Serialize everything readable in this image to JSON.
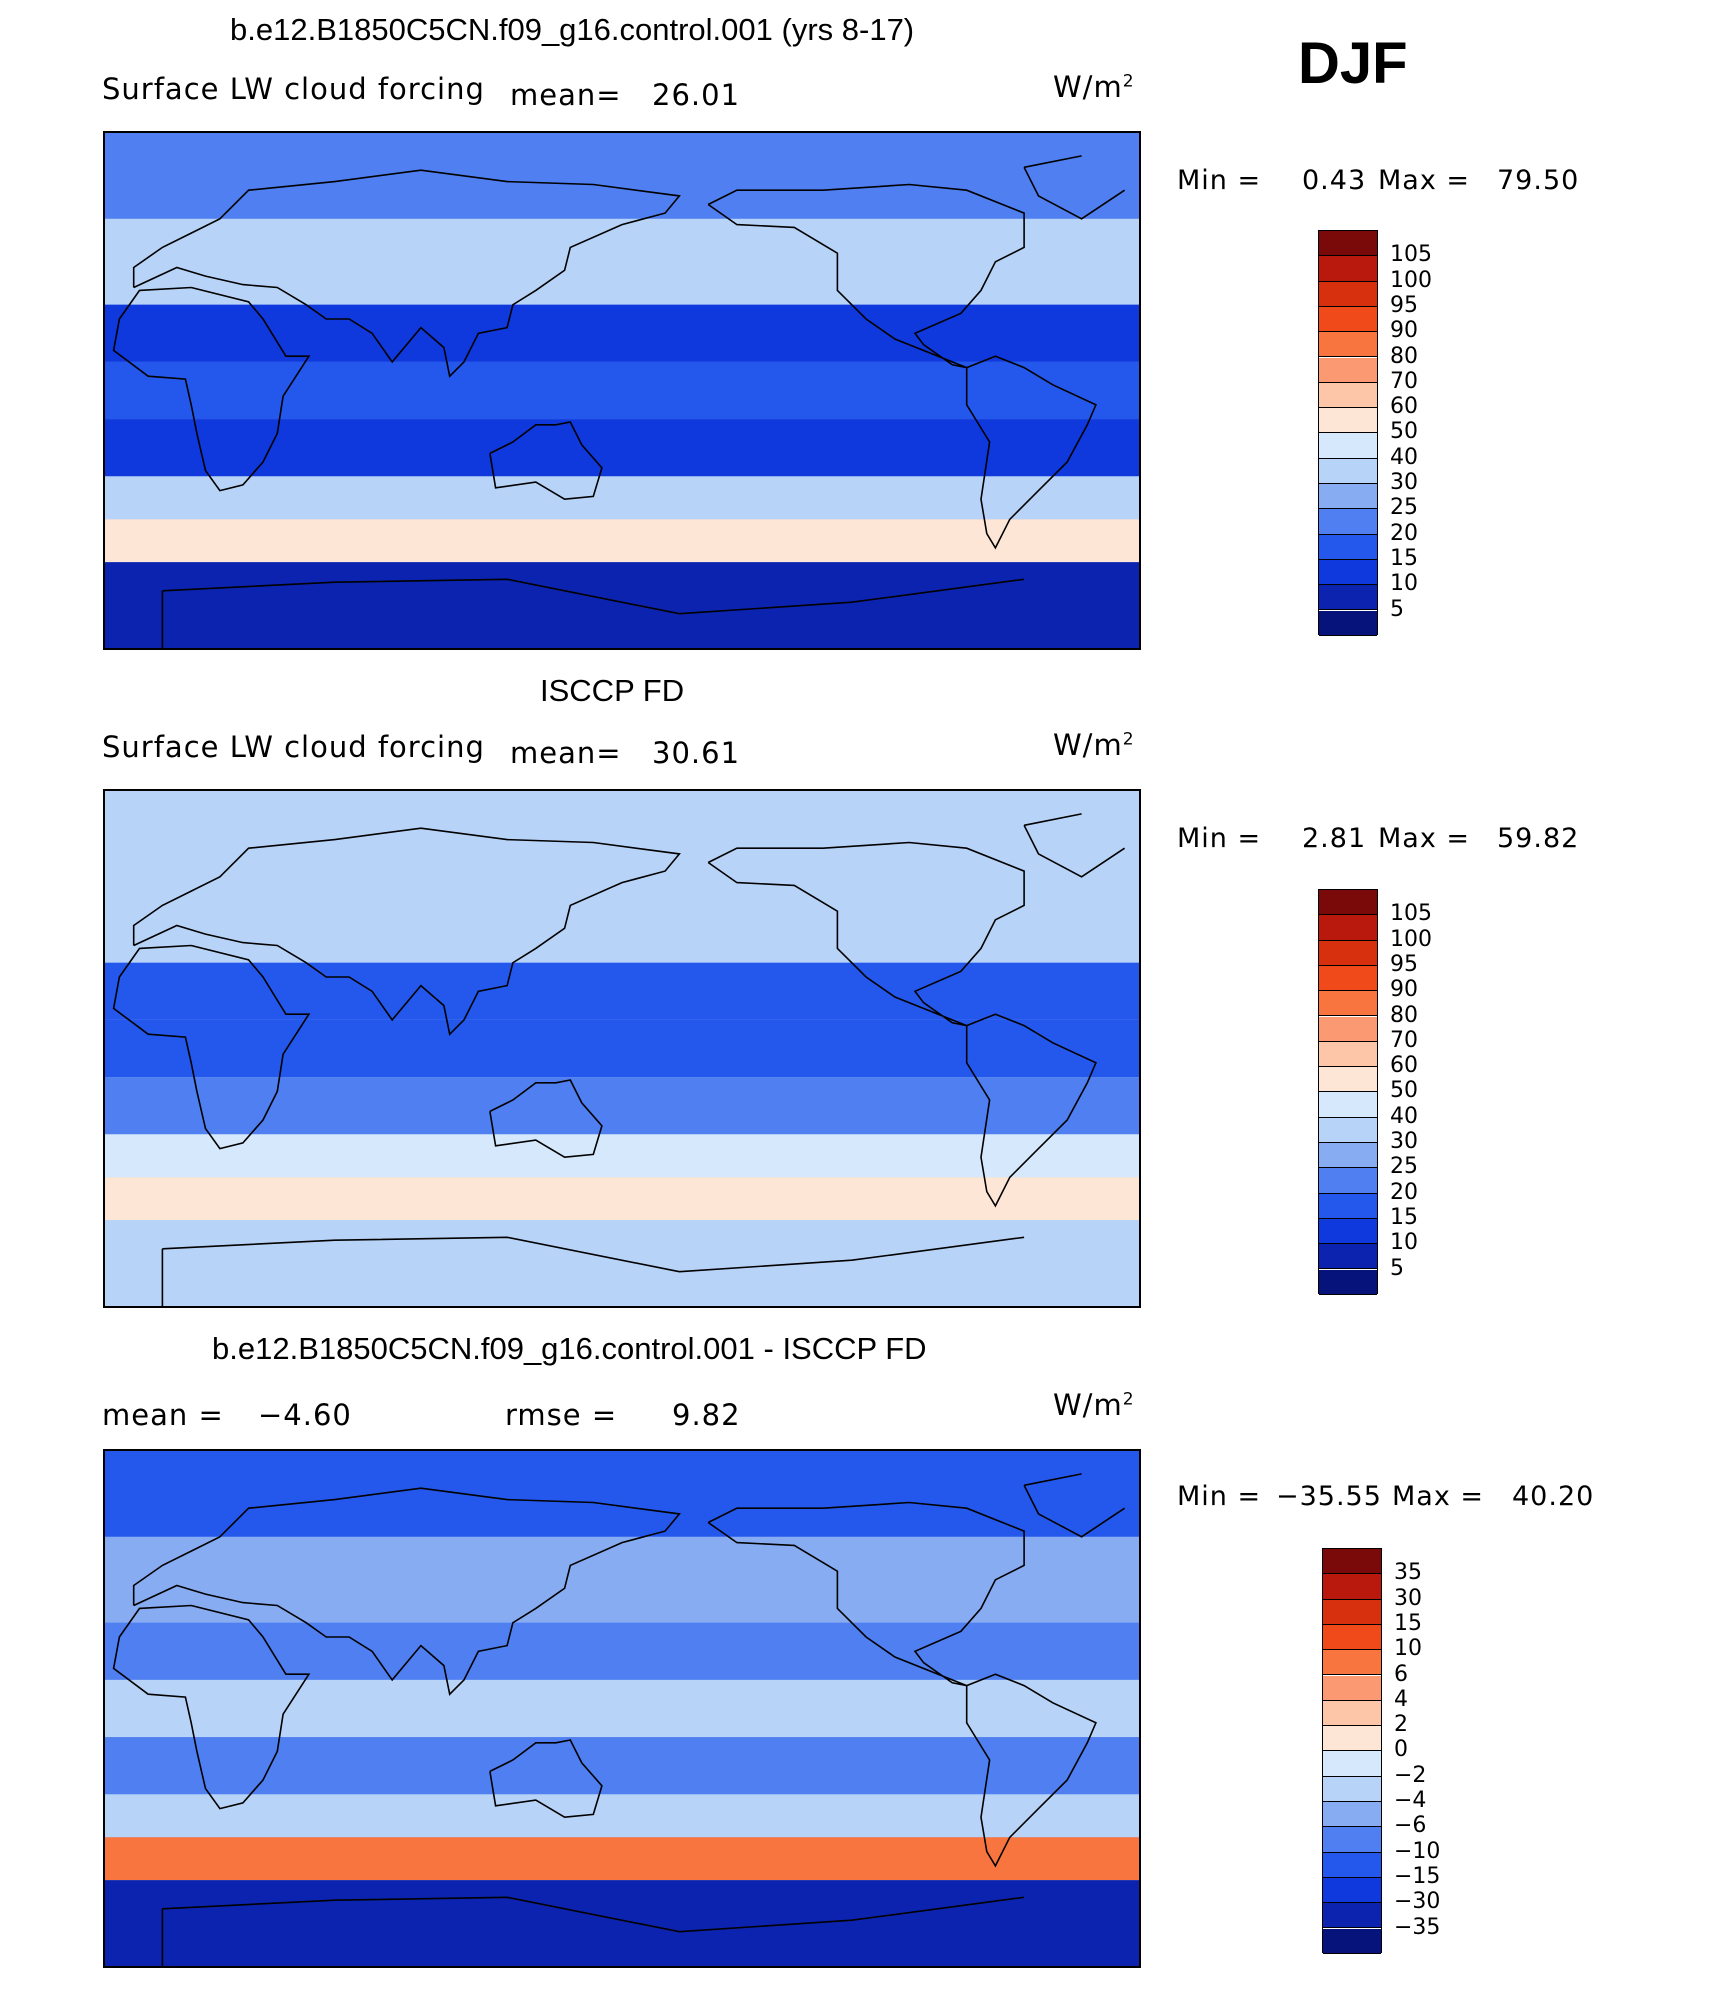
{
  "season": "DJF",
  "panels": [
    {
      "title": "b.e12.B1850C5CN.f09_g16.control.001 (yrs 8-17)",
      "variable": "Surface LW cloud forcing",
      "stat1_label": "mean=",
      "stat1_value": "26.01",
      "units_base": "W/m",
      "units_exp": "2",
      "min_label": "Min =",
      "min_value": "0.43",
      "max_label": "Max =",
      "max_value": "79.50"
    },
    {
      "title": "ISCCP FD",
      "variable": "Surface LW cloud forcing",
      "stat1_label": "mean=",
      "stat1_value": "30.61",
      "units_base": "W/m",
      "units_exp": "2",
      "min_label": "Min =",
      "min_value": "2.81",
      "max_label": "Max =",
      "max_value": "59.82"
    },
    {
      "title": "b.e12.B1850C5CN.f09_g16.control.001 - ISCCP FD",
      "stat1_label": "mean =",
      "stat1_value": "−4.60",
      "stat2_label": "rmse =",
      "stat2_value": "9.82",
      "units_base": "W/m",
      "units_exp": "2",
      "min_label": "Min =",
      "min_value": "−35.55",
      "max_label": "Max =",
      "max_value": "40.20"
    }
  ],
  "colorbars": {
    "absolute": {
      "levels": [
        "105",
        "100",
        "95",
        "90",
        "80",
        "70",
        "60",
        "50",
        "40",
        "30",
        "25",
        "20",
        "15",
        "10",
        "5"
      ],
      "colors": [
        "#7a0a0a",
        "#b8190c",
        "#d6300f",
        "#f04a1a",
        "#f9753f",
        "#fb9a72",
        "#fdc6a9",
        "#fde6d6",
        "#d6e8fb",
        "#b7d3f7",
        "#87acf2",
        "#4f7ff0",
        "#2458ec",
        "#0f38dd",
        "#0b23ae",
        "#05137a"
      ]
    },
    "difference": {
      "levels": [
        "35",
        "30",
        "15",
        "10",
        "6",
        "4",
        "2",
        "0",
        "−2",
        "−4",
        "−6",
        "−10",
        "−15",
        "−30",
        "−35"
      ],
      "colors": [
        "#7a0a0a",
        "#b8190c",
        "#d6300f",
        "#f04a1a",
        "#f9753f",
        "#fb9a72",
        "#fdc6a9",
        "#fde6d6",
        "#d6e8fb",
        "#b7d3f7",
        "#87acf2",
        "#4f7ff0",
        "#2458ec",
        "#0f38dd",
        "#0b23ae",
        "#05137a"
      ]
    }
  },
  "chart_data": [
    {
      "type": "heatmap",
      "title": "b.e12.B1850C5CN.f09_g16.control.001 (yrs 8-17)",
      "variable": "Surface LW cloud forcing",
      "units": "W/m2",
      "mean": 26.01,
      "min": 0.43,
      "max": 79.5,
      "contour_levels": [
        5,
        10,
        15,
        20,
        25,
        30,
        40,
        50,
        60,
        70,
        80,
        90,
        95,
        100,
        105
      ],
      "zonal_bands": [
        {
          "lat_range": [
            60,
            90
          ],
          "value": 22
        },
        {
          "lat_range": [
            30,
            60
          ],
          "value": 35
        },
        {
          "lat_range": [
            10,
            30
          ],
          "value": 12
        },
        {
          "lat_range": [
            -10,
            10
          ],
          "value": 18
        },
        {
          "lat_range": [
            -30,
            -10
          ],
          "value": 12
        },
        {
          "lat_range": [
            -45,
            -30
          ],
          "value": 40
        },
        {
          "lat_range": [
            -60,
            -45
          ],
          "value": 55
        },
        {
          "lat_range": [
            -90,
            -60
          ],
          "value": 8
        }
      ]
    },
    {
      "type": "heatmap",
      "title": "ISCCP FD",
      "variable": "Surface LW cloud forcing",
      "units": "W/m2",
      "mean": 30.61,
      "min": 2.81,
      "max": 59.82,
      "contour_levels": [
        5,
        10,
        15,
        20,
        25,
        30,
        40,
        50,
        60,
        70,
        80,
        90,
        95,
        100,
        105
      ],
      "zonal_bands": [
        {
          "lat_range": [
            60,
            90
          ],
          "value": 35
        },
        {
          "lat_range": [
            30,
            60
          ],
          "value": 38
        },
        {
          "lat_range": [
            10,
            30
          ],
          "value": 18
        },
        {
          "lat_range": [
            -10,
            10
          ],
          "value": 20
        },
        {
          "lat_range": [
            -30,
            -10
          ],
          "value": 22
        },
        {
          "lat_range": [
            -45,
            -30
          ],
          "value": 42
        },
        {
          "lat_range": [
            -60,
            -45
          ],
          "value": 52
        },
        {
          "lat_range": [
            -90,
            -60
          ],
          "value": 40
        }
      ]
    },
    {
      "type": "heatmap",
      "title": "b.e12.B1850C5CN.f09_g16.control.001 - ISCCP FD",
      "units": "W/m2",
      "mean": -4.6,
      "rmse": 9.82,
      "min": -35.55,
      "max": 40.2,
      "contour_levels": [
        -35,
        -30,
        -15,
        -10,
        -6,
        -4,
        -2,
        0,
        2,
        4,
        6,
        10,
        15,
        30,
        35
      ],
      "zonal_bands": [
        {
          "lat_range": [
            60,
            90
          ],
          "value": -12
        },
        {
          "lat_range": [
            30,
            60
          ],
          "value": -4
        },
        {
          "lat_range": [
            10,
            30
          ],
          "value": -6
        },
        {
          "lat_range": [
            -10,
            10
          ],
          "value": -3
        },
        {
          "lat_range": [
            -30,
            -10
          ],
          "value": -8
        },
        {
          "lat_range": [
            -45,
            -30
          ],
          "value": -2
        },
        {
          "lat_range": [
            -60,
            -45
          ],
          "value": 10
        },
        {
          "lat_range": [
            -90,
            -60
          ],
          "value": -30
        }
      ]
    }
  ]
}
